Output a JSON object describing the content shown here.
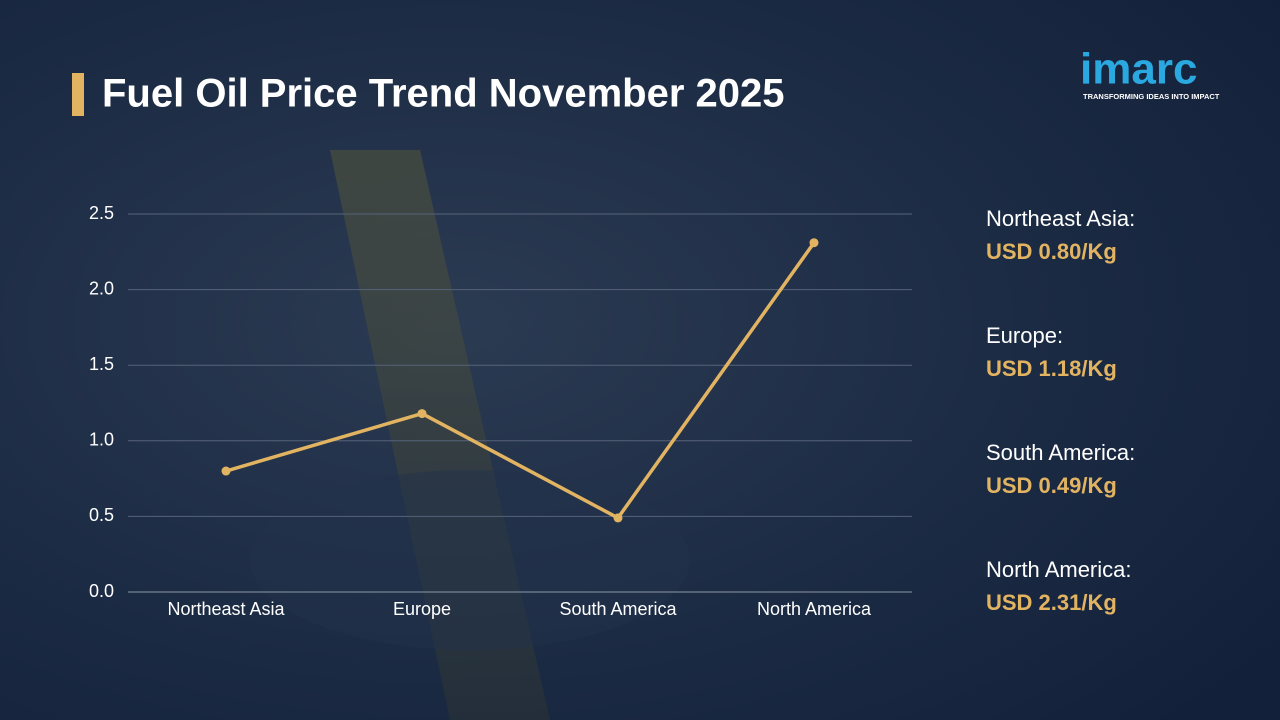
{
  "chart_data": {
    "type": "line",
    "title": "Fuel Oil Price Trend November 2025",
    "categories": [
      "Northeast Asia",
      "Europe",
      "South America",
      "North America"
    ],
    "values": [
      0.8,
      1.18,
      0.49,
      2.31
    ],
    "value_labels": [
      "USD 0.80/Kg",
      "USD 1.18/Kg",
      "USD 0.49/Kg",
      "USD 2.31/Kg"
    ],
    "panel_labels": [
      "Northeast Asia:",
      "Europe:",
      "South America:",
      "North America:"
    ],
    "color": "#e2b462",
    "ylim": [
      0,
      2.5
    ],
    "yticks": [
      {
        "value": 0,
        "label": "0.0"
      },
      0.5,
      {
        "value": 1,
        "label": "1.0"
      },
      1.5,
      {
        "value": 2,
        "label": "2.0"
      },
      2.5
    ],
    "grid": true
  },
  "logo": {
    "name": "imarc",
    "tagline": "TRANSFORMING IDEAS INTO IMPACT"
  }
}
